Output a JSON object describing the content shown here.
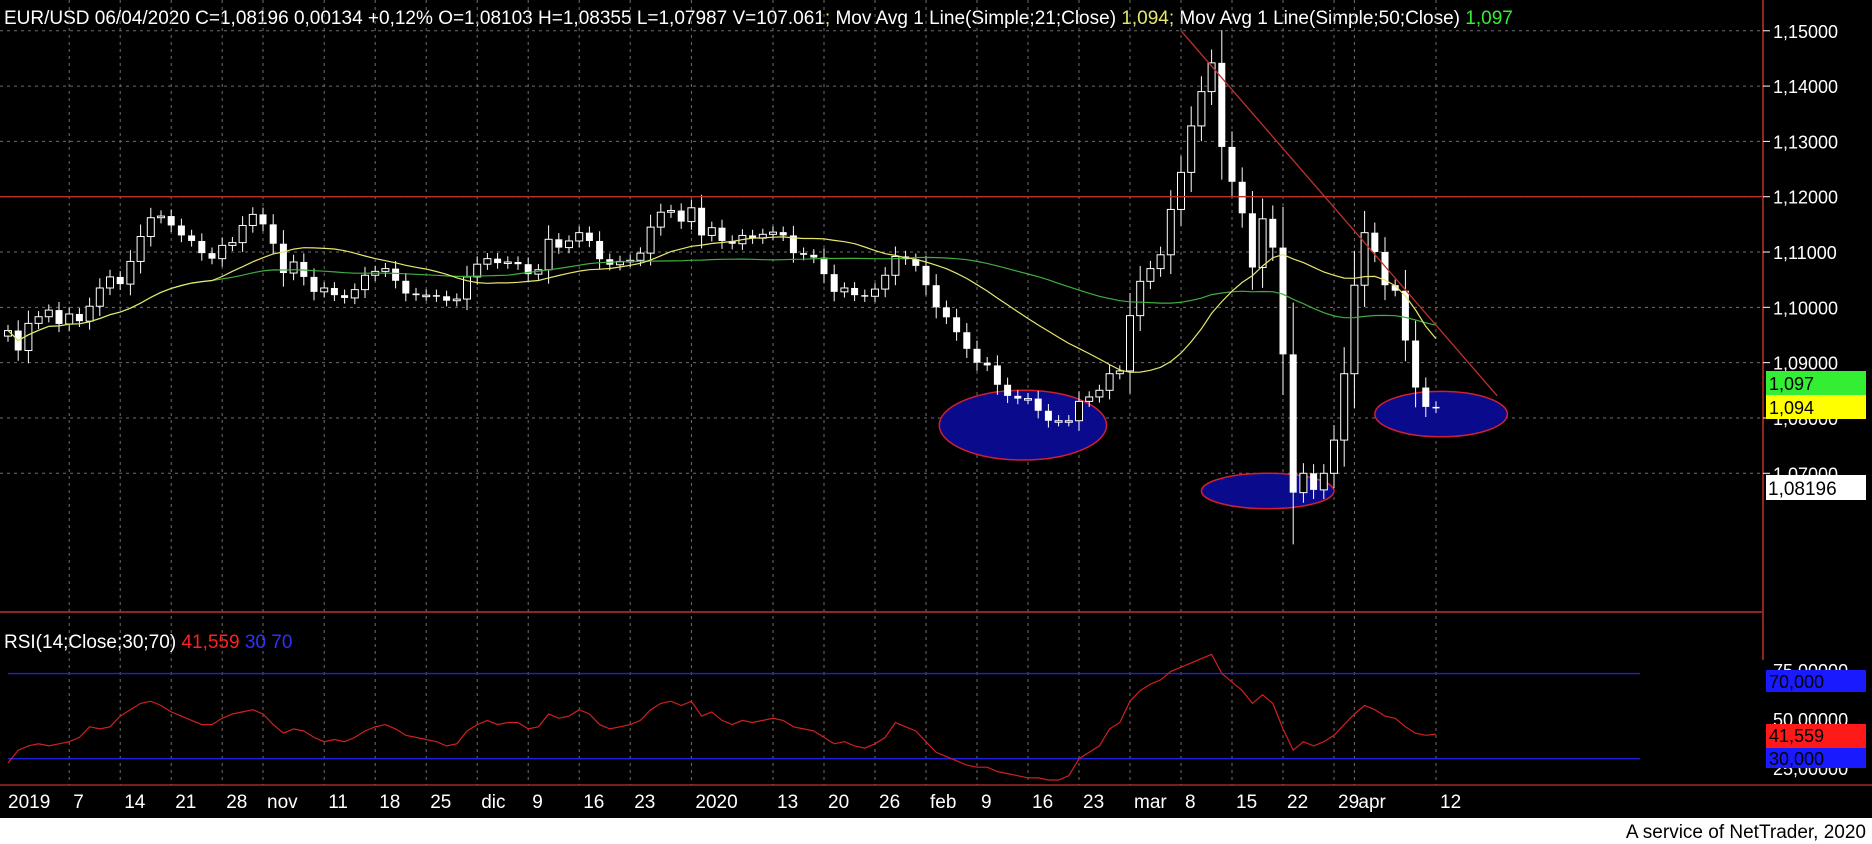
{
  "header": {
    "symbol": "EUR/USD",
    "date": "06/04/2020",
    "close": "C=1,08196",
    "change": "0,00134",
    "change_pct": "+0,12%",
    "open": "O=1,08103",
    "high": "H=1,08355",
    "low": "L=1,07987",
    "volume": "V=107.061",
    "ma21_label": "Mov Avg 1 Line(Simple;21;Close)",
    "ma21_value": "1,094",
    "ma50_label": "Mov Avg 1 Line(Simple;50;Close)",
    "ma50_value": "1,097",
    "sep": ";"
  },
  "price_axis": {
    "ticks": [
      "1,15000",
      "1,14000",
      "1,13000",
      "1,12000",
      "1,11000",
      "1,10000",
      "1,09000",
      "1,08000",
      "1,07000"
    ],
    "last_price_label": "1,08196",
    "ma50_tag": "1,097",
    "ma21_tag": "1,094"
  },
  "rsi": {
    "label": "RSI(14;Close;30;70)",
    "value_label": "41,559",
    "low_label": "30",
    "high_label": "70",
    "axis_ticks": [
      "75,00000",
      "50,00000",
      "25,00000"
    ],
    "tag_high": "70,000",
    "tag_value": "41,559",
    "tag_low": "30,000"
  },
  "time_axis": {
    "labels": [
      {
        "text": "2019",
        "bar": 0
      },
      {
        "text": "7",
        "bar": 6
      },
      {
        "text": "14",
        "bar": 11
      },
      {
        "text": "21",
        "bar": 16
      },
      {
        "text": "28",
        "bar": 21
      },
      {
        "text": "nov",
        "bar": 25
      },
      {
        "text": "11",
        "bar": 31
      },
      {
        "text": "18",
        "bar": 36
      },
      {
        "text": "25",
        "bar": 41
      },
      {
        "text": "dic",
        "bar": 46
      },
      {
        "text": "9",
        "bar": 51
      },
      {
        "text": "16",
        "bar": 56
      },
      {
        "text": "23",
        "bar": 61
      },
      {
        "text": "2020",
        "bar": 67
      },
      {
        "text": "13",
        "bar": 75
      },
      {
        "text": "20",
        "bar": 80
      },
      {
        "text": "26",
        "bar": 85
      },
      {
        "text": "feb",
        "bar": 90
      },
      {
        "text": "9",
        "bar": 95
      },
      {
        "text": "16",
        "bar": 100
      },
      {
        "text": "23",
        "bar": 105
      },
      {
        "text": "mar",
        "bar": 110
      },
      {
        "text": "8",
        "bar": 115
      },
      {
        "text": "15",
        "bar": 120
      },
      {
        "text": "22",
        "bar": 125
      },
      {
        "text": "29",
        "bar": 130
      },
      {
        "text": "apr",
        "bar": 132
      },
      {
        "text": "12",
        "bar": 140
      }
    ]
  },
  "footer": "A service of NetTrader, 2020",
  "colors": {
    "background": "#000000",
    "bull": "#ffffff",
    "bear": "#ffffff",
    "ma21": "#e6e66e",
    "ma50": "#3fae3f",
    "trend": "#c0302a",
    "rsi": "#d02020",
    "rsi_band": "#2020e0",
    "highlight": "#0a0a8c",
    "grid": "#6e6e6e",
    "axis_text": "#ffffff",
    "ma50_tag": "#33ee33",
    "ma21_tag": "#ffff00"
  },
  "chart_data": {
    "type": "candlestick",
    "ylim": [
      1.063,
      1.1505
    ],
    "rsi_ylim": [
      20,
      82
    ],
    "resistance_level": 1.12,
    "trendline": [
      {
        "bar": 115,
        "price": 1.15
      },
      {
        "bar": 146,
        "price": 1.084
      }
    ],
    "highlight_zones": [
      {
        "bar_center": 99.5,
        "price_center": 1.0787,
        "bar_halfwidth": 8.2,
        "price_halfheight": 0.0063
      },
      {
        "bar_center": 123.5,
        "price_center": 1.0668,
        "bar_halfwidth": 6.5,
        "price_halfheight": 0.0032
      },
      {
        "bar_center": 140.5,
        "price_center": 1.0807,
        "bar_halfwidth": 6.5,
        "price_halfheight": 0.0041
      }
    ],
    "close": [
      1.0958,
      1.0922,
      1.0971,
      1.0983,
      1.0995,
      1.097,
      1.0988,
      1.0975,
      1.1002,
      1.1035,
      1.1055,
      1.1042,
      1.1083,
      1.1128,
      1.1162,
      1.1165,
      1.1148,
      1.113,
      1.112,
      1.1098,
      1.1088,
      1.1112,
      1.1117,
      1.1148,
      1.1168,
      1.115,
      1.1115,
      1.1062,
      1.1082,
      1.1055,
      1.1028,
      1.1035,
      1.1022,
      1.1017,
      1.1032,
      1.1058,
      1.1065,
      1.107,
      1.1048,
      1.1025,
      1.1022,
      1.1022,
      1.102,
      1.1012,
      1.1015,
      1.1055,
      1.1078,
      1.1088,
      1.108,
      1.1082,
      1.1078,
      1.106,
      1.1068,
      1.1123,
      1.1108,
      1.112,
      1.1135,
      1.112,
      1.1087,
      1.1077,
      1.1083,
      1.1085,
      1.1098,
      1.1145,
      1.1172,
      1.1175,
      1.1155,
      1.118,
      1.113,
      1.1144,
      1.112,
      1.1115,
      1.113,
      1.1125,
      1.1132,
      1.1136,
      1.113,
      1.1098,
      1.1095,
      1.109,
      1.106,
      1.1028,
      1.1035,
      1.1022,
      1.102,
      1.1033,
      1.1058,
      1.1092,
      1.1087,
      1.1075,
      1.104,
      1.1,
      1.0982,
      1.0955,
      1.0925,
      1.09,
      1.0895,
      1.086,
      1.084,
      1.0835,
      1.0835,
      1.0813,
      1.0795,
      1.0795,
      1.0795,
      1.083,
      1.0838,
      1.085,
      1.088,
      1.0885,
      1.0985,
      1.1047,
      1.107,
      1.1095,
      1.1177,
      1.1244,
      1.1328,
      1.139,
      1.1442,
      1.129,
      1.1227,
      1.117,
      1.1072,
      1.116,
      1.1108,
      1.0915,
      1.0665,
      1.07,
      1.067,
      1.07,
      1.076,
      1.088,
      1.104,
      1.1135,
      1.11,
      1.104,
      1.103,
      1.094,
      1.0855,
      1.082,
      1.0819
    ],
    "rsi": [
      28,
      34,
      36,
      37,
      36,
      37,
      38,
      40,
      45,
      44,
      45,
      50,
      53,
      56,
      57,
      55,
      52,
      50,
      48,
      46,
      46,
      49,
      51,
      52,
      53,
      51,
      46,
      42,
      44,
      43,
      40,
      38,
      39,
      38,
      40,
      43,
      45,
      46,
      44,
      41,
      40,
      39,
      38,
      36,
      37,
      43,
      46,
      48,
      46,
      47,
      47,
      44,
      45,
      51,
      49,
      50,
      53,
      51,
      46,
      44,
      45,
      46,
      48,
      53,
      56,
      57,
      55,
      57,
      50,
      52,
      48,
      46,
      48,
      47,
      48,
      49,
      48,
      45,
      44,
      43,
      40,
      37,
      38,
      36,
      35,
      37,
      40,
      47,
      45,
      43,
      38,
      33,
      31,
      29,
      27,
      26,
      26,
      24,
      23,
      22,
      21,
      21,
      20,
      20,
      22,
      30,
      33,
      36,
      44,
      47,
      57,
      62,
      65,
      67,
      71,
      73,
      75,
      77,
      79,
      70,
      66,
      62,
      56,
      60,
      56,
      44,
      34,
      38,
      36,
      38,
      41,
      46,
      51,
      55,
      53,
      50,
      49,
      45,
      42,
      41,
      41.559
    ]
  }
}
